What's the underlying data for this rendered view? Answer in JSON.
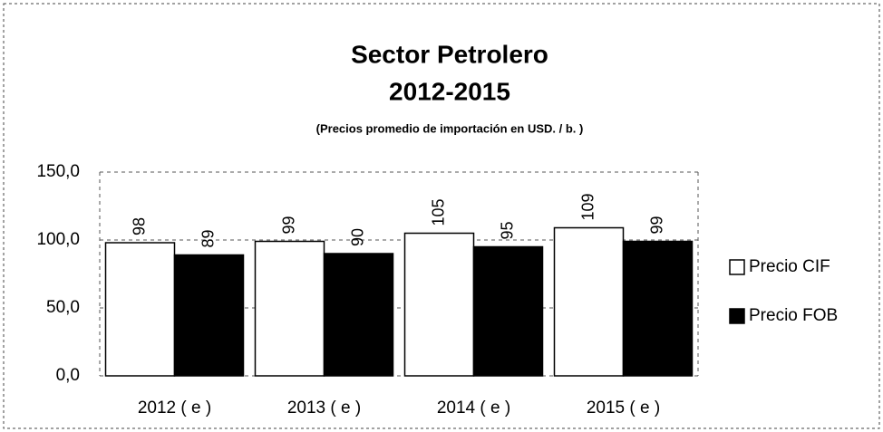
{
  "chart_data": {
    "type": "bar",
    "title": "Sector Petrolero",
    "subtitle": "2012-2015",
    "note": "(Precios promedio de importación en USD. / b. )",
    "categories": [
      "2012 ( e )",
      "2013 ( e )",
      "2014 ( e )",
      "2015 ( e )"
    ],
    "series": [
      {
        "name": "Precio CIF",
        "color": "#ffffff",
        "values": [
          98,
          99,
          105,
          109
        ]
      },
      {
        "name": "Precio FOB",
        "color": "#000000",
        "values": [
          89,
          90,
          95,
          99
        ]
      }
    ],
    "ylim": [
      0,
      150
    ],
    "yticks": [
      {
        "value": 0,
        "label": "0,0"
      },
      {
        "value": 50,
        "label": "50,0"
      },
      {
        "value": 100,
        "label": "100,0"
      },
      {
        "value": 150,
        "label": "150,0"
      }
    ],
    "grid": true,
    "legend": "right"
  }
}
